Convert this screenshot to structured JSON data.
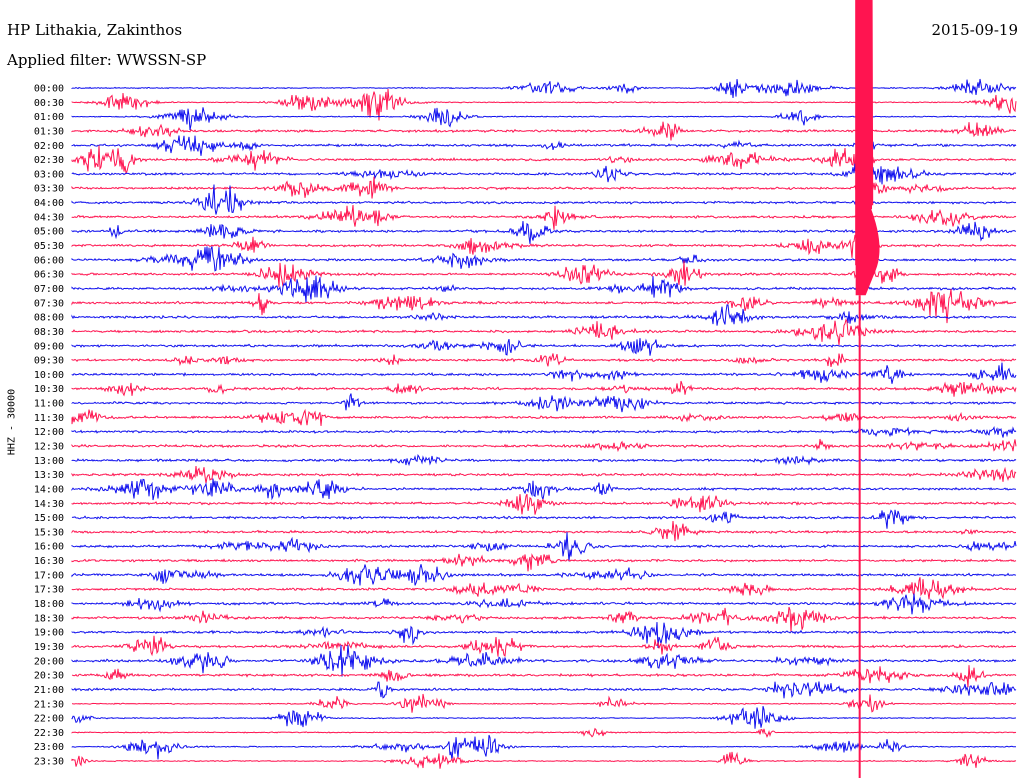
{
  "header": {
    "station": "HP Lithakia, Zakinthos",
    "filter": "Applied filter: WWSSN-SP",
    "date": "2015-09-19"
  },
  "colors": {
    "trace_a": "#1010ee",
    "trace_b": "#ff1450",
    "text": "#000000",
    "background": "#ffffff"
  },
  "chart_data": {
    "type": "line",
    "title": "HP Lithakia, Zakinthos",
    "subtitle": "Applied filter: WWSSN-SP",
    "ylabel": "HHZ - 30000",
    "xlabel": "",
    "rows": [
      "00:00",
      "00:30",
      "01:00",
      "01:30",
      "02:00",
      "02:30",
      "03:00",
      "03:30",
      "04:00",
      "04:30",
      "05:00",
      "05:30",
      "06:00",
      "06:30",
      "07:00",
      "07:30",
      "08:00",
      "08:30",
      "09:00",
      "09:30",
      "10:00",
      "10:30",
      "11:00",
      "11:30",
      "12:00",
      "12:30",
      "13:00",
      "13:30",
      "14:00",
      "14:30",
      "15:00",
      "15:30",
      "16:00",
      "16:30",
      "17:00",
      "17:30",
      "18:00",
      "18:30",
      "19:00",
      "19:30",
      "20:00",
      "20:30",
      "21:00",
      "21:30",
      "22:00",
      "22:30",
      "23:00",
      "23:30"
    ],
    "series_colors": [
      "#1010ee",
      "#ff1450"
    ],
    "major_event": {
      "start_row": "02:00",
      "minute_in_row": 25,
      "saturated": true
    },
    "grid": false,
    "legend": "none"
  }
}
